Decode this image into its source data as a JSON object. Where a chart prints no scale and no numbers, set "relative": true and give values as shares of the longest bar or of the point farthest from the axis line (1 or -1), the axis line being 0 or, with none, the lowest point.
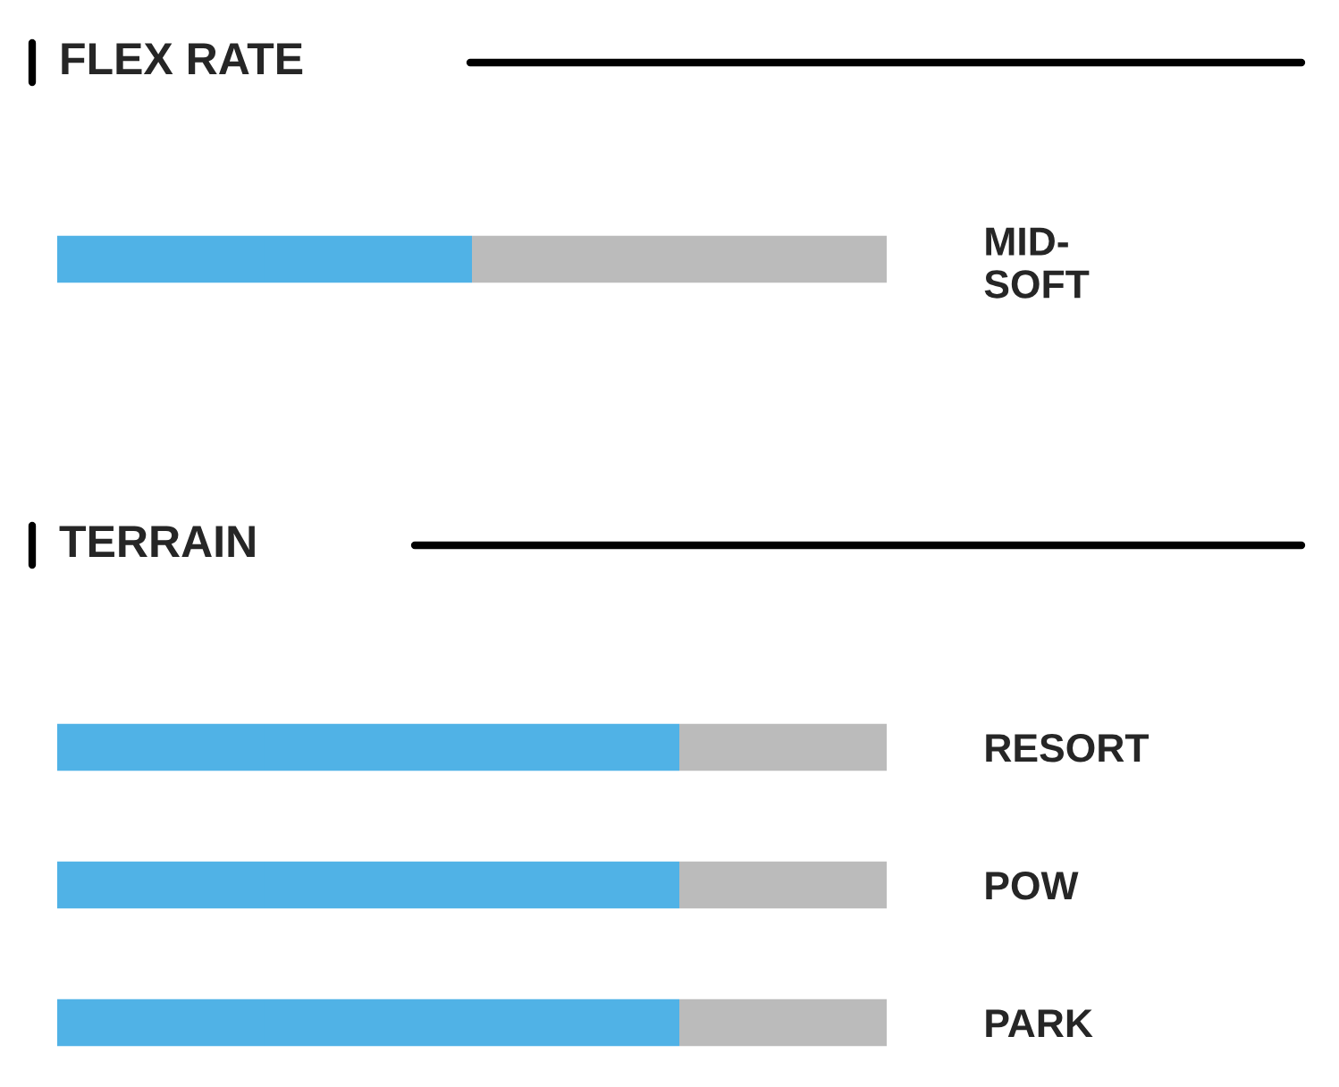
{
  "chart_data": [
    {
      "type": "bar",
      "title": "FLEX RATE",
      "orientation": "horizontal",
      "stacked": true,
      "relative": true,
      "categories": [
        "MID-\nSOFT"
      ],
      "series": [
        {
          "colors": [
            "#50b2e6"
          ],
          "values": [
            0.25
          ]
        },
        {
          "colors": [
            "#50b2e6"
          ],
          "values": [
            0.25
          ]
        },
        {
          "colors": [
            "#bbbbbb"
          ],
          "values": [
            0.25
          ]
        },
        {
          "colors": [
            "#bbbbbb"
          ],
          "values": [
            0.25
          ]
        }
      ]
    },
    {
      "type": "bar",
      "title": "TERRAIN",
      "orientation": "horizontal",
      "stacked": true,
      "relative": true,
      "categories": [
        "RESORT",
        "POW",
        "PARK"
      ],
      "series": [
        {
          "colors": [
            "#50b2e6",
            "#50b2e6",
            "#50b2e6"
          ],
          "values": [
            0.25,
            0.25,
            0.25
          ]
        },
        {
          "colors": [
            "#50b2e6",
            "#50b2e6",
            "#50b2e6"
          ],
          "values": [
            0.25,
            0.25,
            0.25
          ]
        },
        {
          "colors": [
            "#50b2e6",
            "#50b2e6",
            "#50b2e6"
          ],
          "values": [
            0.25,
            0.25,
            0.25
          ]
        },
        {
          "colors": [
            "#bbbbbb",
            "#bbbbbb",
            "#bbbbbb"
          ],
          "values": [
            0.25,
            0.25,
            0.25
          ]
        }
      ]
    }
  ]
}
